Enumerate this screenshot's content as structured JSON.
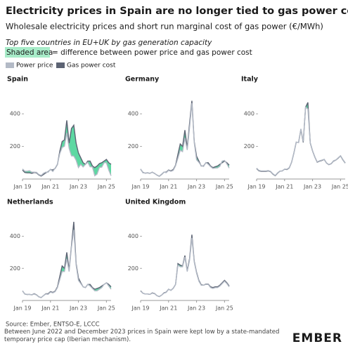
{
  "title": "Electricity prices in Spain are no longer tied to gas power cost",
  "subtitle": "Wholesale electricity prices and short run marginal cost of gas power (€/MWh)",
  "note": "Top five countries in EU+UK by gas generation capacity",
  "shaded_label": "Shaded area",
  "shaded_text": "= difference between power price and gas power cost",
  "source": "Source: Ember, ENTSO-E, LCCC",
  "footnote": "Between June 2022 and December 2023 prices in Spain were kept low by a state-mandated temporary price cap (Iberian mechanism).",
  "logo": "EMBER",
  "chart_data": [
    {
      "type": "line",
      "title": "Spain",
      "fill_between": "#41d192",
      "x": [
        "2019-01",
        "2019-03",
        "2019-05",
        "2019-07",
        "2019-09",
        "2019-11",
        "2020-01",
        "2020-03",
        "2020-05",
        "2020-07",
        "2020-09",
        "2020-11",
        "2021-01",
        "2021-03",
        "2021-05",
        "2021-07",
        "2021-09",
        "2021-11",
        "2022-01",
        "2022-03",
        "2022-05",
        "2022-07",
        "2022-09",
        "2022-11",
        "2023-01",
        "2023-03",
        "2023-05",
        "2023-07",
        "2023-09",
        "2023-11",
        "2024-01",
        "2024-03",
        "2024-05",
        "2024-07",
        "2024-09",
        "2024-11",
        "2025-01",
        "2025-03",
        "2025-05"
      ],
      "xticks": [
        {
          "value": "2019-01",
          "label": "Jan 19"
        },
        {
          "value": "2021-01",
          "label": "Jan 21"
        },
        {
          "value": "2023-01",
          "label": "Jan 23"
        },
        {
          "value": "2025-01",
          "label": "Jan 25"
        }
      ],
      "ylim": [
        0,
        560
      ],
      "yticks": [
        200,
        400
      ],
      "series": [
        {
          "name": "Power price",
          "color": "#b3bac6",
          "values": [
            62,
            48,
            48,
            51,
            42,
            42,
            41,
            28,
            22,
            35,
            42,
            42,
            60,
            46,
            67,
            92,
            156,
            193,
            201,
            283,
            188,
            142,
            141,
            115,
            70,
            90,
            74,
            90,
            103,
            75,
            74,
            20,
            30,
            71,
            73,
            100,
            100,
            55,
            20
          ]
        },
        {
          "name": "Gas power cost",
          "color": "#5c6373",
          "values": [
            55,
            40,
            38,
            38,
            35,
            40,
            38,
            25,
            18,
            28,
            38,
            45,
            58,
            55,
            65,
            90,
            170,
            230,
            240,
            360,
            220,
            310,
            330,
            220,
            160,
            130,
            100,
            90,
            110,
            110,
            80,
            70,
            80,
            95,
            100,
            110,
            120,
            100,
            90
          ]
        }
      ]
    },
    {
      "type": "line",
      "title": "Germany",
      "fill_between": "#41d192",
      "x": [
        "2019-01",
        "2019-03",
        "2019-05",
        "2019-07",
        "2019-09",
        "2019-11",
        "2020-01",
        "2020-03",
        "2020-05",
        "2020-07",
        "2020-09",
        "2020-11",
        "2021-01",
        "2021-03",
        "2021-05",
        "2021-07",
        "2021-09",
        "2021-11",
        "2022-01",
        "2022-03",
        "2022-05",
        "2022-07",
        "2022-09",
        "2022-11",
        "2023-01",
        "2023-03",
        "2023-05",
        "2023-07",
        "2023-09",
        "2023-11",
        "2024-01",
        "2024-03",
        "2024-05",
        "2024-07",
        "2024-09",
        "2024-11",
        "2025-01",
        "2025-03",
        "2025-05"
      ],
      "xticks": [
        {
          "value": "2019-01",
          "label": "Jan 19"
        },
        {
          "value": "2021-01",
          "label": "Jan 21"
        },
        {
          "value": "2023-01",
          "label": "Jan 23"
        },
        {
          "value": "2025-01",
          "label": "Jan 25"
        }
      ],
      "ylim": [
        0,
        560
      ],
      "yticks": [
        200,
        400
      ],
      "series": [
        {
          "name": "Power price",
          "color": "#b3bac6",
          "values": [
            62,
            38,
            37,
            39,
            36,
            41,
            35,
            23,
            18,
            30,
            43,
            39,
            53,
            47,
            53,
            81,
            128,
            176,
            168,
            252,
            178,
            315,
            465,
            224,
            118,
            102,
            82,
            77,
            101,
            91,
            76,
            65,
            67,
            68,
            78,
            110,
            114,
            93,
            67
          ]
        },
        {
          "name": "Gas power cost",
          "color": "#5c6373",
          "values": [
            60,
            40,
            36,
            38,
            35,
            42,
            34,
            24,
            17,
            28,
            42,
            42,
            55,
            50,
            58,
            85,
            150,
            215,
            200,
            300,
            190,
            340,
            480,
            230,
            140,
            110,
            80,
            80,
            100,
            100,
            80,
            70,
            75,
            80,
            90,
            100,
            110,
            100,
            85
          ]
        }
      ]
    },
    {
      "type": "line",
      "title": "Italy",
      "fill_between": "#41d192",
      "x": [
        "2019-01",
        "2019-03",
        "2019-05",
        "2019-07",
        "2019-09",
        "2019-11",
        "2020-01",
        "2020-03",
        "2020-05",
        "2020-07",
        "2020-09",
        "2020-11",
        "2021-01",
        "2021-03",
        "2021-05",
        "2021-07",
        "2021-09",
        "2021-11",
        "2022-01",
        "2022-03",
        "2022-05",
        "2022-07",
        "2022-09",
        "2022-11",
        "2023-01",
        "2023-03",
        "2023-05",
        "2023-07",
        "2023-09",
        "2023-11",
        "2024-01",
        "2024-03",
        "2024-05",
        "2024-07",
        "2024-09",
        "2024-11",
        "2025-01",
        "2025-03",
        "2025-05"
      ],
      "xticks": [
        {
          "value": "2019-01",
          "label": "Jan 19"
        },
        {
          "value": "2021-01",
          "label": "Jan 21"
        },
        {
          "value": "2023-01",
          "label": "Jan 23"
        },
        {
          "value": "2025-01",
          "label": "Jan 25"
        }
      ],
      "ylim": [
        0,
        560
      ],
      "yticks": [
        200,
        400
      ],
      "series": [
        {
          "name": "Power price",
          "color": "#b3bac6",
          "values": [
            67,
            53,
            50,
            50,
            50,
            52,
            47,
            32,
            22,
            38,
            49,
            49,
            61,
            60,
            70,
            103,
            158,
            226,
            224,
            308,
            230,
            441,
            430,
            224,
            174,
            136,
            105,
            112,
            116,
            121,
            99,
            89,
            95,
            112,
            117,
            130,
            143,
            120,
            100
          ]
        },
        {
          "name": "Gas power cost",
          "color": "#5c6373",
          "values": [
            64,
            50,
            47,
            47,
            47,
            50,
            45,
            30,
            20,
            36,
            48,
            50,
            60,
            58,
            68,
            102,
            160,
            226,
            224,
            305,
            225,
            440,
            470,
            222,
            172,
            134,
            103,
            110,
            114,
            120,
            98,
            88,
            94,
            110,
            116,
            128,
            142,
            118,
            98
          ]
        }
      ]
    },
    {
      "type": "line",
      "title": "Netherlands",
      "fill_between": "#41d192",
      "x": [
        "2019-01",
        "2019-03",
        "2019-05",
        "2019-07",
        "2019-09",
        "2019-11",
        "2020-01",
        "2020-03",
        "2020-05",
        "2020-07",
        "2020-09",
        "2020-11",
        "2021-01",
        "2021-03",
        "2021-05",
        "2021-07",
        "2021-09",
        "2021-11",
        "2022-01",
        "2022-03",
        "2022-05",
        "2022-07",
        "2022-09",
        "2022-11",
        "2023-01",
        "2023-03",
        "2023-05",
        "2023-07",
        "2023-09",
        "2023-11",
        "2024-01",
        "2024-03",
        "2024-05",
        "2024-07",
        "2024-09",
        "2024-11",
        "2025-01",
        "2025-03",
        "2025-05"
      ],
      "xticks": [
        {
          "value": "2019-01",
          "label": "Jan 19"
        },
        {
          "value": "2021-01",
          "label": "Jan 21"
        },
        {
          "value": "2023-01",
          "label": "Jan 23"
        },
        {
          "value": "2025-01",
          "label": "Jan 25"
        }
      ],
      "ylim": [
        0,
        560
      ],
      "yticks": [
        200,
        400
      ],
      "series": [
        {
          "name": "Power price",
          "color": "#b3bac6",
          "values": [
            60,
            40,
            38,
            38,
            35,
            40,
            34,
            22,
            17,
            30,
            40,
            38,
            52,
            47,
            55,
            80,
            130,
            180,
            180,
            260,
            180,
            330,
            440,
            220,
            125,
            105,
            85,
            80,
            100,
            90,
            75,
            60,
            60,
            70,
            80,
            100,
            110,
            90,
            70
          ]
        },
        {
          "name": "Gas power cost",
          "color": "#5c6373",
          "values": [
            60,
            40,
            37,
            38,
            35,
            42,
            35,
            23,
            18,
            30,
            42,
            42,
            55,
            50,
            58,
            85,
            150,
            215,
            200,
            300,
            190,
            340,
            490,
            230,
            140,
            110,
            85,
            80,
            100,
            100,
            80,
            70,
            75,
            80,
            90,
            100,
            110,
            100,
            85
          ]
        }
      ]
    },
    {
      "type": "line",
      "title": "United Kingdom",
      "fill_between": "#41d192",
      "x": [
        "2019-01",
        "2019-03",
        "2019-05",
        "2019-07",
        "2019-09",
        "2019-11",
        "2020-01",
        "2020-03",
        "2020-05",
        "2020-07",
        "2020-09",
        "2020-11",
        "2021-01",
        "2021-03",
        "2021-05",
        "2021-07",
        "2021-09",
        "2021-11",
        "2022-01",
        "2022-03",
        "2022-05",
        "2022-07",
        "2022-09",
        "2022-11",
        "2023-01",
        "2023-03",
        "2023-05",
        "2023-07",
        "2023-09",
        "2023-11",
        "2024-01",
        "2024-03",
        "2024-05",
        "2024-07",
        "2024-09",
        "2024-11",
        "2025-01",
        "2025-03",
        "2025-05"
      ],
      "xticks": [
        {
          "value": "2019-01",
          "label": "Jan 19"
        },
        {
          "value": "2021-01",
          "label": "Jan 21"
        },
        {
          "value": "2023-01",
          "label": "Jan 23"
        },
        {
          "value": "2025-01",
          "label": "Jan 25"
        }
      ],
      "ylim": [
        0,
        560
      ],
      "yticks": [
        200,
        400
      ],
      "series": [
        {
          "name": "Power price",
          "color": "#b3bac6",
          "values": [
            58,
            45,
            40,
            40,
            38,
            45,
            42,
            30,
            25,
            33,
            45,
            50,
            70,
            62,
            75,
            100,
            220,
            210,
            210,
            270,
            180,
            250,
            390,
            240,
            170,
            120,
            95,
            95,
            100,
            100,
            80,
            75,
            80,
            80,
            90,
            105,
            120,
            105,
            85
          ]
        },
        {
          "name": "Gas power cost",
          "color": "#5c6373",
          "values": [
            60,
            45,
            40,
            40,
            38,
            47,
            43,
            30,
            24,
            33,
            47,
            52,
            70,
            63,
            76,
            100,
            230,
            220,
            215,
            280,
            185,
            260,
            410,
            245,
            175,
            125,
            98,
            95,
            102,
            102,
            85,
            80,
            85,
            85,
            95,
            110,
            125,
            110,
            90
          ]
        }
      ]
    }
  ]
}
